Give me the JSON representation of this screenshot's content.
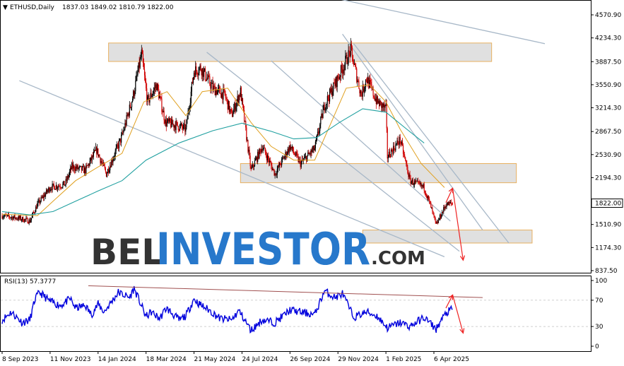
{
  "header": {
    "symbol_label": "ETHUSD,Daily",
    "ohlc_label": "1837.03 1849.02 1810.79 1822.00",
    "rsi_label": "RSI(13) 57.3777"
  },
  "watermark": {
    "part1": "BEL",
    "part2": "INVESTOR",
    "part3": ".COM"
  },
  "colors": {
    "bull": "#000000",
    "bear": "#d00000",
    "ma_fast": "#e0a020",
    "ma_slow": "#20a0a0",
    "trendline": "#a8b8c8",
    "zone_fill": "#e0e0e0",
    "zone_border": "#e8b060",
    "rsi_line": "#0000dd",
    "rsi_trend": "#a05050",
    "arrow": "#ee2222"
  },
  "chart_data": [
    {
      "type": "candlestick",
      "name": "ETHUSD",
      "timeframe": "Daily",
      "last_price": "1822.00",
      "y_ticks": [
        "4570.90",
        "4234.30",
        "3887.50",
        "3550.90",
        "3214.30",
        "2867.50",
        "2530.90",
        "2194.30",
        "1510.90",
        "1174.30",
        "837.50"
      ],
      "x_ticks": [
        "8 Sep 2023",
        "11 Nov 2023",
        "14 Jan 2024",
        "18 Mar 2024",
        "21 May 2024",
        "24 Jul 2024",
        "26 Sep 2024",
        "29 Nov 2024",
        "1 Feb 2025",
        "6 Apr 2025"
      ],
      "ylim": [
        837.5,
        4700
      ],
      "close_path": [
        [
          "2023-09-08",
          1640
        ],
        [
          "2023-10-01",
          1600
        ],
        [
          "2023-10-15",
          1560
        ],
        [
          "2023-10-25",
          1800
        ],
        [
          "2023-11-11",
          2050
        ],
        [
          "2023-12-01",
          2100
        ],
        [
          "2023-12-10",
          2350
        ],
        [
          "2023-12-28",
          2300
        ],
        [
          "2024-01-12",
          2600
        ],
        [
          "2024-01-25",
          2250
        ],
        [
          "2024-02-15",
          2800
        ],
        [
          "2024-03-01",
          3400
        ],
        [
          "2024-03-12",
          4000
        ],
        [
          "2024-03-20",
          3300
        ],
        [
          "2024-04-01",
          3550
        ],
        [
          "2024-04-13",
          3000
        ],
        [
          "2024-04-30",
          2950
        ],
        [
          "2024-05-10",
          2900
        ],
        [
          "2024-05-21",
          3750
        ],
        [
          "2024-05-30",
          3800
        ],
        [
          "2024-06-15",
          3500
        ],
        [
          "2024-07-01",
          3400
        ],
        [
          "2024-07-10",
          3100
        ],
        [
          "2024-07-22",
          3450
        ],
        [
          "2024-08-05",
          2300
        ],
        [
          "2024-08-20",
          2650
        ],
        [
          "2024-09-06",
          2250
        ],
        [
          "2024-09-26",
          2650
        ],
        [
          "2024-10-10",
          2400
        ],
        [
          "2024-10-29",
          2620
        ],
        [
          "2024-11-11",
          3250
        ],
        [
          "2024-11-29",
          3650
        ],
        [
          "2024-12-16",
          4050
        ],
        [
          "2024-12-30",
          3400
        ],
        [
          "2025-01-06",
          3650
        ],
        [
          "2025-01-20",
          3300
        ],
        [
          "2025-02-01",
          3200
        ],
        [
          "2025-02-03",
          2500
        ],
        [
          "2025-02-20",
          2750
        ],
        [
          "2025-03-05",
          2150
        ],
        [
          "2025-03-24",
          2050
        ],
        [
          "2025-04-01",
          1800
        ],
        [
          "2025-04-09",
          1500
        ],
        [
          "2025-04-22",
          1800
        ],
        [
          "2025-05-01",
          1822
        ]
      ],
      "ma_fast": [
        [
          "2023-09-08",
          1660
        ],
        [
          "2023-10-25",
          1640
        ],
        [
          "2023-11-15",
          1850
        ],
        [
          "2023-12-15",
          2150
        ],
        [
          "2024-01-14",
          2350
        ],
        [
          "2024-02-15",
          2550
        ],
        [
          "2024-03-15",
          3300
        ],
        [
          "2024-04-15",
          3450
        ],
        [
          "2024-05-10",
          3100
        ],
        [
          "2024-06-01",
          3450
        ],
        [
          "2024-07-05",
          3500
        ],
        [
          "2024-08-05",
          3000
        ],
        [
          "2024-09-01",
          2650
        ],
        [
          "2024-10-01",
          2450
        ],
        [
          "2024-10-29",
          2450
        ],
        [
          "2024-11-20",
          3000
        ],
        [
          "2024-12-10",
          3500
        ],
        [
          "2025-01-10",
          3550
        ],
        [
          "2025-02-01",
          3300
        ],
        [
          "2025-02-20",
          2900
        ],
        [
          "2025-03-20",
          2400
        ],
        [
          "2025-04-20",
          2050
        ]
      ],
      "ma_slow": [
        [
          "2023-09-08",
          1700
        ],
        [
          "2023-10-15",
          1650
        ],
        [
          "2023-11-15",
          1700
        ],
        [
          "2023-12-15",
          1850
        ],
        [
          "2024-01-14",
          2000
        ],
        [
          "2024-02-15",
          2150
        ],
        [
          "2024-03-18",
          2450
        ],
        [
          "2024-05-01",
          2700
        ],
        [
          "2024-06-15",
          2880
        ],
        [
          "2024-07-24",
          2990
        ],
        [
          "2024-09-01",
          2870
        ],
        [
          "2024-10-01",
          2760
        ],
        [
          "2024-11-01",
          2780
        ],
        [
          "2024-12-01",
          3000
        ],
        [
          "2025-01-01",
          3200
        ],
        [
          "2025-02-01",
          3150
        ],
        [
          "2025-03-01",
          2900
        ],
        [
          "2025-03-24",
          2700
        ]
      ],
      "zones": [
        {
          "start": "2024-01-28",
          "end": "2025-06-22",
          "low": 3890,
          "high": 4160
        },
        {
          "start": "2024-07-22",
          "end": "2025-07-25",
          "low": 2120,
          "high": 2400
        },
        {
          "start": "2025-01-01",
          "end": "2025-08-15",
          "low": 1240,
          "high": 1430
        }
      ],
      "trend_lines": [
        {
          "from": [
            "2023-10-01",
            3610
          ],
          "to": [
            "2025-04-20",
            1040
          ]
        },
        {
          "from": [
            "2024-06-07",
            4025
          ],
          "to": [
            "2025-05-10",
            1120
          ]
        },
        {
          "from": [
            "2024-09-01",
            3900
          ],
          "to": [
            "2025-04-28",
            1560
          ]
        },
        {
          "from": [
            "2024-11-10",
            4850
          ],
          "to": [
            "2025-09-01",
            4150
          ]
        },
        {
          "from": [
            "2024-12-05",
            4290
          ],
          "to": [
            "2025-06-10",
            1430
          ]
        },
        {
          "from": [
            "2024-12-20",
            4150
          ],
          "to": [
            "2025-07-15",
            1240
          ]
        }
      ],
      "arrows": [
        {
          "from": [
            "2025-04-22",
            1830
          ],
          "to": [
            "2025-05-01",
            2040
          ]
        },
        {
          "from": [
            "2025-05-01",
            2040
          ],
          "to": [
            "2025-05-15",
            990
          ]
        }
      ]
    },
    {
      "type": "line",
      "name": "RSI(13)",
      "last_value": 57.3777,
      "y_ticks": [
        "100",
        "70",
        "30",
        "0"
      ],
      "ylim": [
        -10,
        105
      ],
      "levels": [
        70,
        30
      ],
      "values": [
        [
          "2023-09-08",
          40
        ],
        [
          "2023-09-20",
          52
        ],
        [
          "2023-10-05",
          36
        ],
        [
          "2023-10-15",
          40
        ],
        [
          "2023-10-22",
          72
        ],
        [
          "2023-10-28",
          82
        ],
        [
          "2023-11-11",
          68
        ],
        [
          "2023-11-25",
          62
        ],
        [
          "2023-12-08",
          72
        ],
        [
          "2023-12-15",
          58
        ],
        [
          "2023-12-28",
          62
        ],
        [
          "2024-01-05",
          48
        ],
        [
          "2024-01-14",
          64
        ],
        [
          "2024-01-22",
          52
        ],
        [
          "2024-02-10",
          82
        ],
        [
          "2024-02-25",
          74
        ],
        [
          "2024-03-02",
          88
        ],
        [
          "2024-03-18",
          45
        ],
        [
          "2024-03-25",
          52
        ],
        [
          "2024-04-05",
          42
        ],
        [
          "2024-04-14",
          58
        ],
        [
          "2024-05-01",
          40
        ],
        [
          "2024-05-10",
          46
        ],
        [
          "2024-05-21",
          72
        ],
        [
          "2024-05-28",
          64
        ],
        [
          "2024-06-10",
          55
        ],
        [
          "2024-06-25",
          42
        ],
        [
          "2024-07-10",
          40
        ],
        [
          "2024-07-20",
          54
        ],
        [
          "2024-08-05",
          24
        ],
        [
          "2024-08-20",
          40
        ],
        [
          "2024-09-06",
          36
        ],
        [
          "2024-09-26",
          55
        ],
        [
          "2024-10-10",
          52
        ],
        [
          "2024-10-29",
          48
        ],
        [
          "2024-11-11",
          84
        ],
        [
          "2024-11-25",
          74
        ],
        [
          "2024-12-05",
          80
        ],
        [
          "2024-12-20",
          44
        ],
        [
          "2025-01-06",
          52
        ],
        [
          "2025-01-20",
          46
        ],
        [
          "2025-02-03",
          28
        ],
        [
          "2025-02-20",
          36
        ],
        [
          "2025-03-05",
          30
        ],
        [
          "2025-03-24",
          44
        ],
        [
          "2025-04-09",
          26
        ],
        [
          "2025-04-15",
          38
        ],
        [
          "2025-04-22",
          50
        ],
        [
          "2025-05-01",
          57
        ]
      ],
      "trend_lines": [
        {
          "from": [
            "2024-01-01",
            92
          ],
          "to": [
            "2025-06-10",
            74
          ]
        }
      ],
      "arrows": [
        {
          "from": [
            "2025-04-22",
            58
          ],
          "to": [
            "2025-05-01",
            78
          ]
        },
        {
          "from": [
            "2025-05-01",
            78
          ],
          "to": [
            "2025-05-15",
            20
          ]
        }
      ]
    }
  ]
}
